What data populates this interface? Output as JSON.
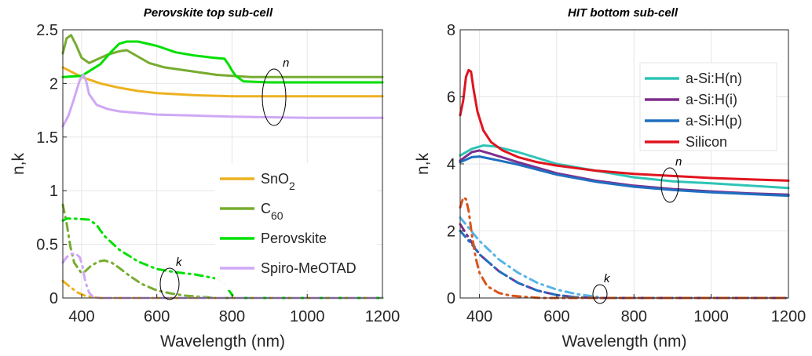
{
  "chart_data": [
    {
      "type": "line",
      "title": "Perovskite top sub-cell",
      "xlabel": "Wavelength (nm)",
      "ylabel": "n,k",
      "xlim": [
        350,
        1200
      ],
      "ylim": [
        0,
        2.5
      ],
      "xticks": [
        400,
        600,
        800,
        1000,
        1200
      ],
      "yticks": [
        0,
        0.5,
        1,
        1.5,
        2,
        2.5
      ],
      "grid": true,
      "legend_position": "right-center",
      "legend": [
        {
          "label": "SnO",
          "sub": "2",
          "color": "#EDB120"
        },
        {
          "label": "C",
          "sub": "60",
          "color": "#77AC30"
        },
        {
          "label": "Perovskite",
          "sub": "",
          "color": "#00E000"
        },
        {
          "label": "Spiro-MeOTAD",
          "sub": "",
          "color": "#CFA8F5"
        }
      ],
      "annotations": [
        {
          "text": "n",
          "near": [
            880,
            1.9
          ]
        },
        {
          "text": "k",
          "near": [
            630,
            0.12
          ]
        }
      ],
      "series": [
        {
          "name": "SnO2 n",
          "color": "#EDB120",
          "dash": false,
          "x": [
            350,
            400,
            450,
            500,
            550,
            600,
            700,
            800,
            900,
            1000,
            1200
          ],
          "y": [
            2.15,
            2.06,
            2.0,
            1.96,
            1.93,
            1.91,
            1.89,
            1.88,
            1.88,
            1.88,
            1.88
          ]
        },
        {
          "name": "C60 n",
          "color": "#77AC30",
          "dash": false,
          "x": [
            350,
            360,
            372,
            385,
            400,
            420,
            445,
            470,
            500,
            520,
            540,
            580,
            620,
            660,
            700,
            760,
            800,
            850,
            1000,
            1200
          ],
          "y": [
            2.28,
            2.42,
            2.45,
            2.36,
            2.24,
            2.19,
            2.23,
            2.27,
            2.3,
            2.31,
            2.27,
            2.19,
            2.15,
            2.13,
            2.11,
            2.08,
            2.07,
            2.06,
            2.06,
            2.06
          ]
        },
        {
          "name": "Perovskite n",
          "color": "#00E000",
          "dash": false,
          "x": [
            350,
            400,
            450,
            480,
            500,
            520,
            550,
            600,
            650,
            700,
            750,
            780,
            790,
            800,
            810,
            830,
            900,
            1000,
            1200
          ],
          "y": [
            2.06,
            2.07,
            2.18,
            2.3,
            2.37,
            2.39,
            2.39,
            2.35,
            2.29,
            2.26,
            2.24,
            2.23,
            2.18,
            2.12,
            2.07,
            2.02,
            2.01,
            2.01,
            2.01
          ]
        },
        {
          "name": "Spiro-MeOTAD n",
          "color": "#CFA8F5",
          "dash": false,
          "x": [
            350,
            365,
            380,
            395,
            405,
            412,
            420,
            440,
            470,
            500,
            600,
            700,
            800,
            1000,
            1200
          ],
          "y": [
            1.6,
            1.7,
            1.86,
            2.03,
            2.08,
            2.02,
            1.9,
            1.8,
            1.76,
            1.74,
            1.71,
            1.7,
            1.69,
            1.68,
            1.68
          ]
        },
        {
          "name": "SnO2 k",
          "color": "#EDB120",
          "dash": true,
          "x": [
            350,
            370,
            390,
            410,
            430,
            450,
            500,
            1200
          ],
          "y": [
            0.16,
            0.1,
            0.05,
            0.02,
            0.01,
            0.0,
            0.0,
            0.0
          ]
        },
        {
          "name": "C60 k",
          "color": "#77AC30",
          "dash": true,
          "x": [
            350,
            360,
            370,
            380,
            400,
            410,
            425,
            445,
            460,
            480,
            500,
            530,
            560,
            600,
            640,
            680,
            720,
            760,
            800,
            1200
          ],
          "y": [
            0.87,
            0.7,
            0.48,
            0.33,
            0.23,
            0.25,
            0.3,
            0.34,
            0.35,
            0.33,
            0.28,
            0.2,
            0.13,
            0.07,
            0.04,
            0.02,
            0.01,
            0.0,
            0.0,
            0.0
          ]
        },
        {
          "name": "Perovskite k",
          "color": "#00E000",
          "dash": true,
          "x": [
            350,
            360,
            380,
            420,
            440,
            460,
            500,
            550,
            600,
            650,
            700,
            760,
            780,
            790,
            800,
            810,
            1200
          ],
          "y": [
            0.72,
            0.74,
            0.74,
            0.73,
            0.68,
            0.58,
            0.45,
            0.34,
            0.27,
            0.24,
            0.22,
            0.18,
            0.13,
            0.08,
            0.03,
            0.0,
            0.0
          ]
        },
        {
          "name": "Spiro-MeOTAD k",
          "color": "#CFA8F5",
          "dash": true,
          "x": [
            350,
            360,
            372,
            385,
            395,
            402,
            410,
            420,
            430,
            450,
            1200
          ],
          "y": [
            0.33,
            0.38,
            0.41,
            0.41,
            0.38,
            0.3,
            0.15,
            0.05,
            0.01,
            0.0,
            0.0
          ]
        }
      ]
    },
    {
      "type": "line",
      "title": "HIT bottom sub-cell",
      "xlabel": "Wavelength (nm)",
      "ylabel": "n,k",
      "xlim": [
        350,
        1200
      ],
      "ylim": [
        0,
        8
      ],
      "xticks": [
        400,
        600,
        800,
        1000,
        1200
      ],
      "yticks": [
        0,
        2,
        4,
        6,
        8
      ],
      "grid": true,
      "legend_position": "top-right",
      "legend": [
        {
          "label": "a-Si:H(n)",
          "sub": "",
          "color": "#2EC4B6"
        },
        {
          "label": "a-Si:H(i)",
          "sub": "",
          "color": "#7E2F8E"
        },
        {
          "label": "a-Si:H(p)",
          "sub": "",
          "color": "#1F6FC0"
        },
        {
          "label": "Silicon",
          "sub": "",
          "color": "#E0141E"
        }
      ],
      "annotations": [
        {
          "text": "n",
          "near": [
            880,
            3.4
          ]
        },
        {
          "text": "k",
          "near": [
            710,
            0.05
          ]
        }
      ],
      "series": [
        {
          "name": "a-Si:H(n) n",
          "color": "#2EC4B6",
          "dash": false,
          "x": [
            350,
            380,
            410,
            440,
            500,
            600,
            700,
            800,
            900,
            1000,
            1100,
            1200
          ],
          "y": [
            4.25,
            4.45,
            4.55,
            4.52,
            4.35,
            4.0,
            3.8,
            3.6,
            3.48,
            3.42,
            3.35,
            3.28
          ]
        },
        {
          "name": "a-Si:H(i) n",
          "color": "#7E2F8E",
          "dash": false,
          "x": [
            350,
            380,
            400,
            430,
            500,
            600,
            700,
            800,
            900,
            1000,
            1100,
            1200
          ],
          "y": [
            4.1,
            4.35,
            4.4,
            4.3,
            4.05,
            3.72,
            3.5,
            3.35,
            3.25,
            3.18,
            3.12,
            3.08
          ]
        },
        {
          "name": "a-Si:H(p) n",
          "color": "#1F6FC0",
          "dash": false,
          "x": [
            350,
            380,
            400,
            430,
            500,
            600,
            700,
            800,
            900,
            1000,
            1100,
            1200
          ],
          "y": [
            4.05,
            4.2,
            4.22,
            4.15,
            3.98,
            3.68,
            3.47,
            3.32,
            3.22,
            3.15,
            3.1,
            3.05
          ]
        },
        {
          "name": "Silicon n",
          "color": "#E0141E",
          "dash": false,
          "x": [
            350,
            358,
            365,
            372,
            378,
            385,
            395,
            410,
            430,
            460,
            500,
            550,
            600,
            700,
            800,
            900,
            1000,
            1100,
            1200
          ],
          "y": [
            5.45,
            5.9,
            6.6,
            6.8,
            6.75,
            6.2,
            5.55,
            5.0,
            4.65,
            4.4,
            4.2,
            4.05,
            3.95,
            3.8,
            3.7,
            3.64,
            3.58,
            3.54,
            3.5
          ]
        },
        {
          "name": "a-Si:H(n) k",
          "color": "#56B4E9",
          "dash": true,
          "x": [
            350,
            400,
            450,
            500,
            550,
            600,
            650,
            700,
            720,
            1200
          ],
          "y": [
            2.4,
            1.7,
            1.15,
            0.75,
            0.45,
            0.25,
            0.12,
            0.04,
            0.0,
            0.0
          ]
        },
        {
          "name": "a-Si:H(i) k",
          "color": "#7E2F8E",
          "dash": true,
          "x": [
            350,
            380,
            400,
            450,
            500,
            550,
            600,
            650,
            700,
            1200
          ],
          "y": [
            2.2,
            1.65,
            1.3,
            0.8,
            0.45,
            0.22,
            0.09,
            0.02,
            0.0,
            0.0
          ]
        },
        {
          "name": "a-Si:H(p) k",
          "color": "#1F6FC0",
          "dash": true,
          "x": [
            350,
            380,
            400,
            450,
            500,
            550,
            600,
            650,
            700,
            1200
          ],
          "y": [
            2.0,
            1.6,
            1.3,
            0.8,
            0.45,
            0.22,
            0.09,
            0.02,
            0.0,
            0.0
          ]
        },
        {
          "name": "Silicon k",
          "color": "#D95319",
          "dash": true,
          "x": [
            350,
            358,
            365,
            372,
            380,
            390,
            400,
            420,
            450,
            480,
            520,
            560,
            1200
          ],
          "y": [
            2.7,
            3.0,
            2.95,
            2.6,
            1.9,
            1.2,
            0.75,
            0.35,
            0.15,
            0.07,
            0.03,
            0.0,
            0.0
          ]
        }
      ]
    }
  ]
}
